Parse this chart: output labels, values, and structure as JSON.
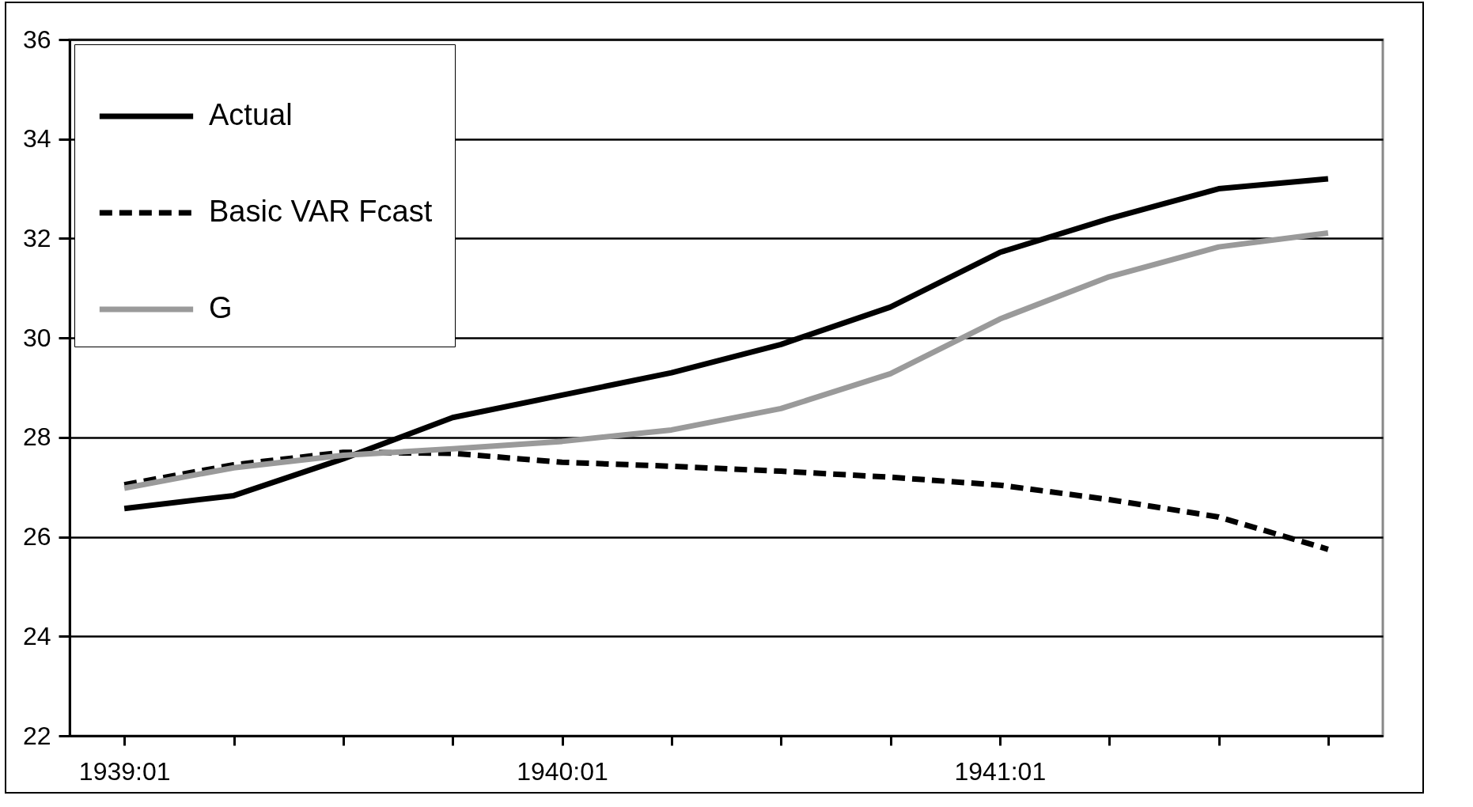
{
  "chart_data": {
    "type": "line",
    "categories": [
      "1939:01",
      null,
      null,
      null,
      "1940:01",
      null,
      null,
      null,
      "1941:01",
      null,
      null,
      null
    ],
    "series": [
      {
        "name": "Actual",
        "color": "#000000",
        "line_style": "solid",
        "values": [
          26.57,
          26.83,
          27.57,
          28.4,
          28.85,
          29.3,
          29.87,
          30.62,
          31.72,
          32.4,
          33.0,
          33.2
        ]
      },
      {
        "name": "Basic VAR Fcast",
        "color": "#000000",
        "line_style": "dashed",
        "values": [
          27.05,
          27.45,
          27.7,
          27.68,
          27.5,
          27.42,
          27.32,
          27.2,
          27.04,
          26.75,
          26.4,
          25.75
        ]
      },
      {
        "name": "G",
        "color": "#9a9a9a",
        "line_style": "solid",
        "values": [
          26.98,
          27.39,
          27.64,
          27.77,
          27.92,
          28.15,
          28.58,
          29.28,
          30.38,
          31.23,
          31.83,
          32.11
        ]
      }
    ],
    "ylim": [
      22,
      36
    ],
    "yticks": [
      22,
      24,
      26,
      28,
      30,
      32,
      34,
      36
    ],
    "grid": "y",
    "legend": "top left",
    "marker": "none"
  }
}
